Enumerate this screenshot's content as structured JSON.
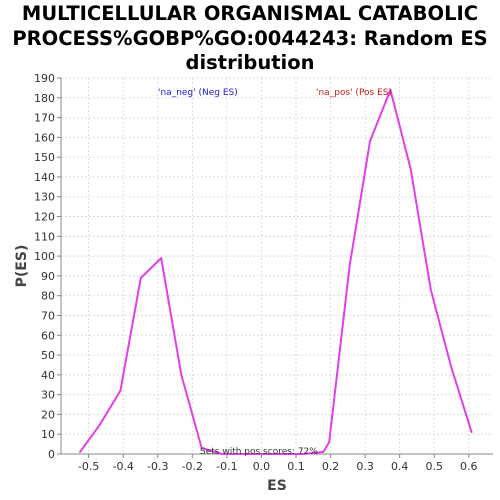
{
  "chart_data": {
    "type": "line",
    "title_lines": [
      "MULTICELLULAR ORGANISMAL CATABOLIC",
      "PROCESS%GOBP%GO:0044243: Random ES",
      "distribution"
    ],
    "xlabel": "ES",
    "ylabel": "P(ES)",
    "xlim": [
      -0.58,
      0.67
    ],
    "ylim": [
      0,
      190
    ],
    "x_ticks": [
      -0.5,
      -0.4,
      -0.3,
      -0.2,
      -0.1,
      0.0,
      0.1,
      0.2,
      0.3,
      0.4,
      0.5,
      0.6
    ],
    "x_tick_labels": [
      "-0.5",
      "-0.4",
      "-0.3",
      "-0.2",
      "-0.1",
      "0.0",
      "0.1",
      "0.2",
      "0.3",
      "0.4",
      "0.5",
      "0.6"
    ],
    "y_ticks": [
      0,
      10,
      20,
      30,
      40,
      50,
      60,
      70,
      80,
      90,
      100,
      110,
      120,
      130,
      140,
      150,
      160,
      170,
      180,
      190
    ],
    "grid": true,
    "series": [
      {
        "color": "#e040e8",
        "x": [
          -0.525,
          -0.467,
          -0.408,
          -0.349,
          -0.29,
          -0.232,
          -0.173,
          -0.114,
          -0.056,
          0.003,
          0.062,
          0.12,
          0.179,
          0.196,
          0.255,
          0.314,
          0.373,
          0.432,
          0.49,
          0.549,
          0.608
        ],
        "y": [
          1,
          15,
          32,
          89,
          99,
          40,
          3,
          0,
          0,
          0,
          0,
          0,
          1,
          6,
          95,
          158,
          184,
          144,
          83,
          44,
          11
        ]
      }
    ],
    "annotations": {
      "neg": {
        "text": "'na_neg' (Neg ES)",
        "color": "#2020cc"
      },
      "pos": {
        "text": "'na_pos' (Pos ES)",
        "color": "#cc2020"
      },
      "sets": {
        "text": "Sets with pos scores: 72%",
        "color": "#333333"
      }
    }
  }
}
